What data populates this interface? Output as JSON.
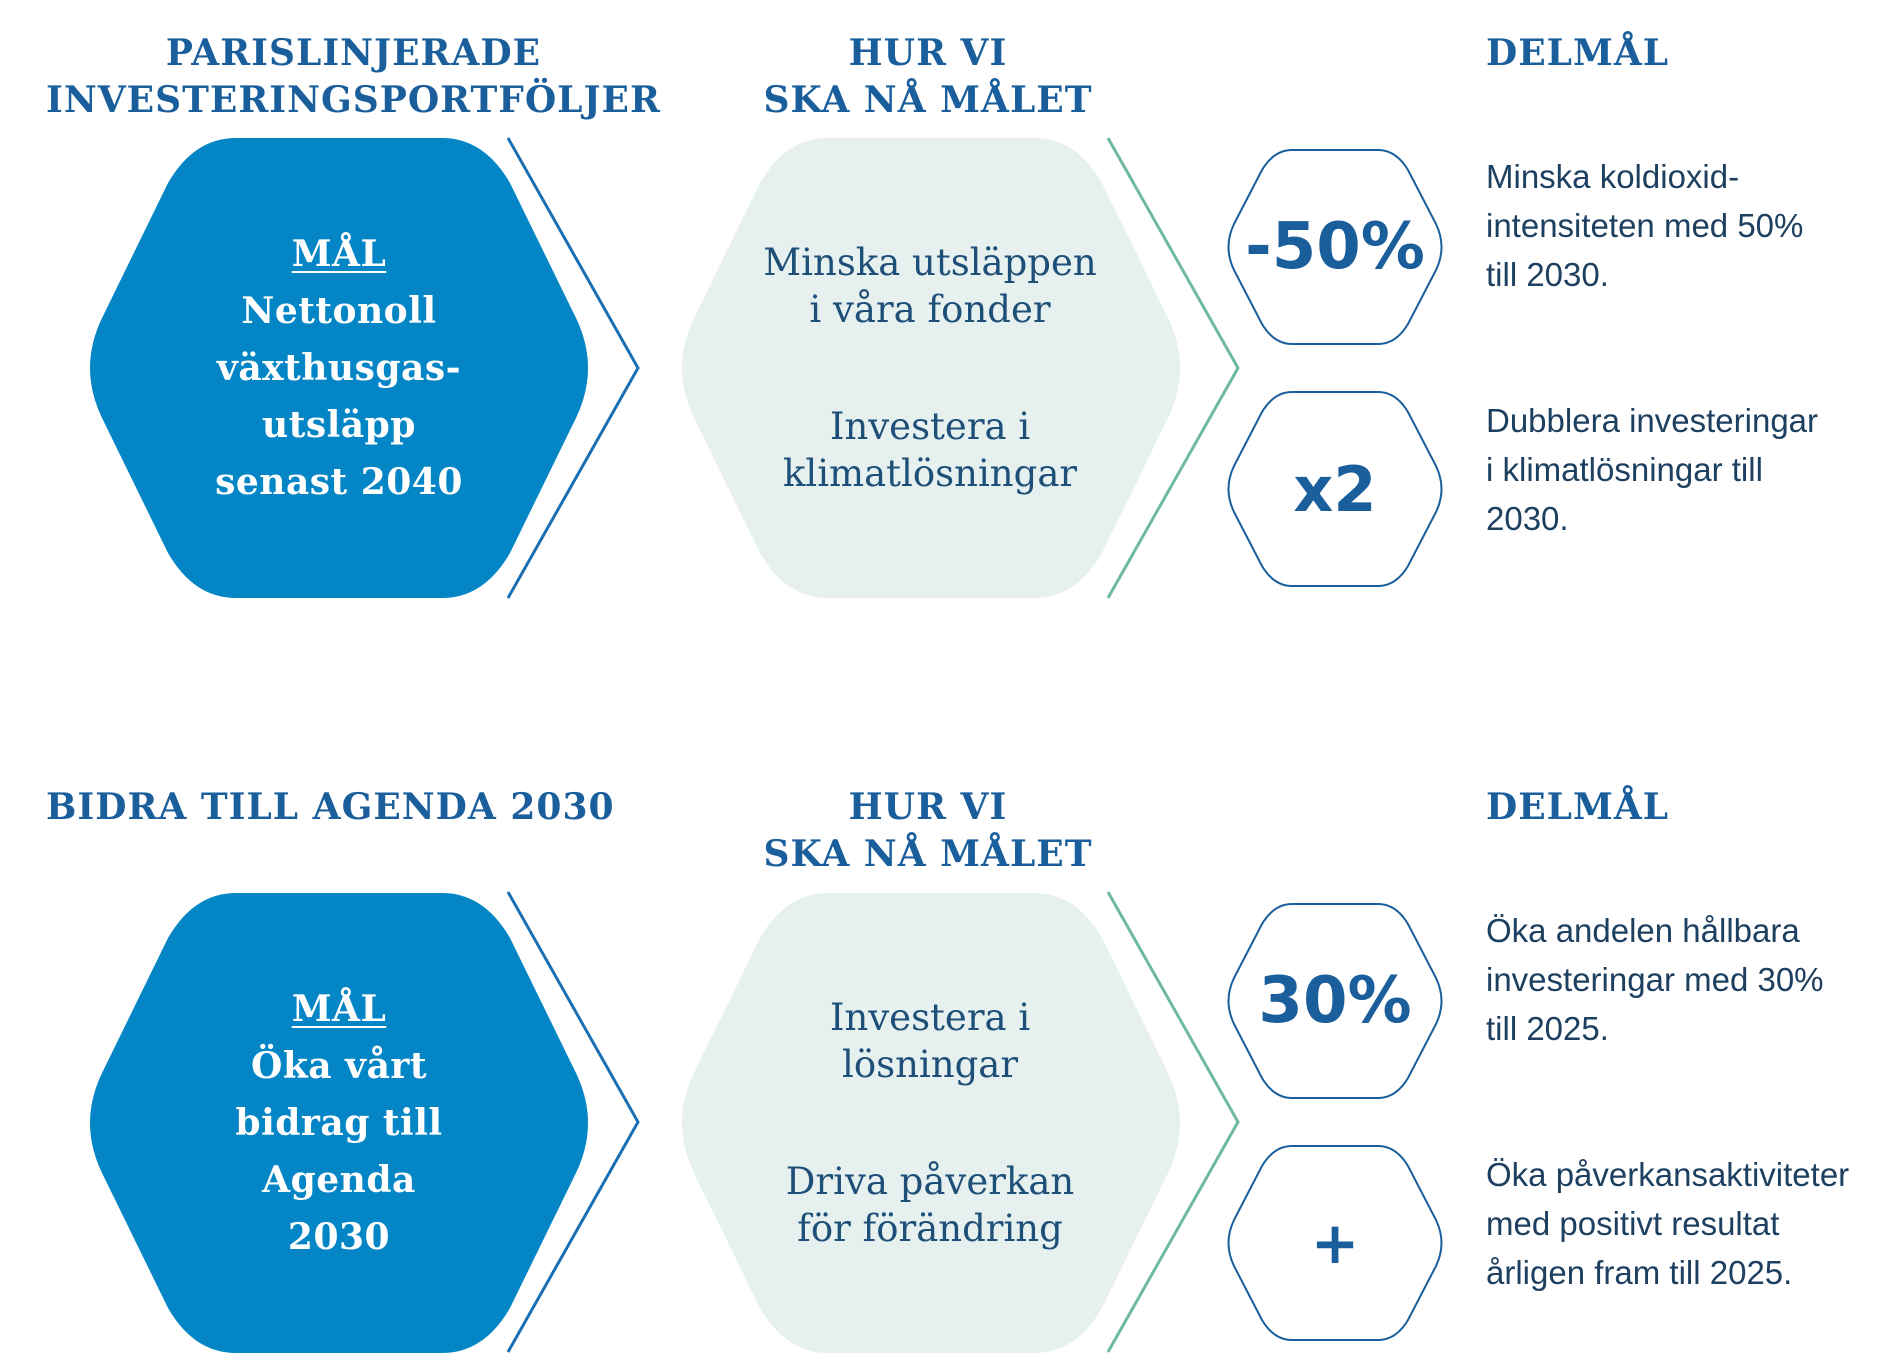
{
  "colors": {
    "goal_fill": "#0486c6",
    "how_fill": "#e6f0ee",
    "heading": "#1a5e9c",
    "chevron_blue": "#1a6fb3",
    "chevron_green": "#6fb9a2",
    "badge_outline": "#1a5e9c",
    "body_text": "#1d3f60"
  },
  "sections": [
    {
      "goal_heading": "PARISLINJERADE\nINVESTERINGSPORTFÖLJER",
      "how_heading": "HUR VI\nSKA NÅ MÅLET",
      "milestones_heading": "DELMÅL",
      "goal": {
        "label": "MÅL",
        "text": "Nettonoll\nväxthusgas-\nutsläpp\nsenast 2040"
      },
      "how": [
        "Minska utsläppen\ni våra fonder",
        "Investera i\nklimatlösningar"
      ],
      "milestones": [
        {
          "badge": "-50%",
          "text": "Minska koldioxid-\nintensiteten med 50%\ntill 2030."
        },
        {
          "badge": "x2",
          "text": "Dubblera investeringar\ni klimatlösningar till\n2030."
        }
      ]
    },
    {
      "goal_heading": "BIDRA TILL AGENDA 2030",
      "how_heading": "HUR VI\nSKA NÅ MÅLET",
      "milestones_heading": "DELMÅL",
      "goal": {
        "label": "MÅL",
        "text": "Öka vårt\nbidrag till\nAgenda\n2030"
      },
      "how": [
        "Investera i\nlösningar",
        "Driva påverkan\nför förändring"
      ],
      "milestones": [
        {
          "badge": "30%",
          "text": "Öka andelen hållbara\ninvesteringar med 30%\ntill 2025."
        },
        {
          "badge": "+",
          "text": "Öka påverkansaktiviteter\nmed positivt resultat\nårligen fram till 2025."
        }
      ]
    }
  ]
}
